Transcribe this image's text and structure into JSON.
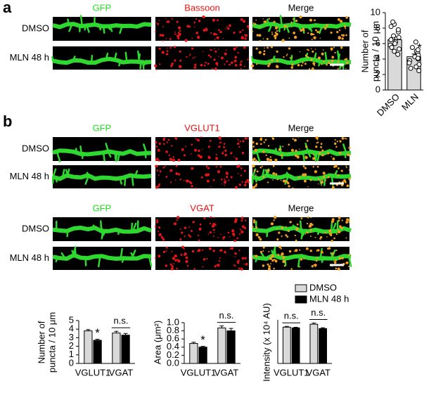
{
  "panel_labels": [
    "a",
    "b"
  ],
  "image_blocks": [
    {
      "columns": [
        "GFP",
        "Bassoon",
        "Merge"
      ],
      "rows": [
        "DMSO",
        "MLN 48 h"
      ]
    },
    {
      "columns": [
        "GFP",
        "VGLUT1",
        "Merge"
      ],
      "rows": [
        "DMSO",
        "MLN 48 h"
      ]
    },
    {
      "columns": [
        "GFP",
        "VGAT",
        "Merge"
      ],
      "rows": [
        "DMSO",
        "MLN 48 h"
      ]
    }
  ],
  "chart_data": [
    {
      "type": "bar",
      "ylabel": [
        "Number of",
        "puncta / 10 μm"
      ],
      "categories": [
        "DMSO",
        "MLN"
      ],
      "values": [
        6.5,
        4.3
      ],
      "errors": [
        0.4,
        0.35
      ],
      "color": "#d9d9d9",
      "points": [
        [
          8.5,
          8.8,
          8.2,
          7.5,
          7.0,
          6.8,
          6.5,
          6.2,
          5.8,
          5.5,
          5.0,
          4.6,
          7.8,
          6.0,
          5.3
        ],
        [
          6.2,
          5.5,
          5.0,
          4.8,
          4.5,
          4.3,
          4.0,
          3.8,
          3.5,
          3.3,
          3.0,
          2.8,
          2.5,
          5.2,
          4.1
        ]
      ],
      "ylim": [
        0,
        10
      ],
      "yticks": [
        0,
        2,
        4,
        6,
        8,
        10
      ],
      "annotations": [
        "*"
      ]
    },
    {
      "type": "grouped-bar",
      "ylabel": [
        "Number of",
        "puncta / 10 μm"
      ],
      "categories": [
        "VGLUT1",
        "VGAT"
      ],
      "series": [
        {
          "name": "DMSO",
          "color": "#d9d9d9",
          "values": [
            3.8,
            3.55
          ],
          "errors": [
            0.15,
            0.2
          ]
        },
        {
          "name": "MLN 48 h",
          "color": "#000000",
          "values": [
            2.7,
            3.3
          ],
          "errors": [
            0.12,
            0.2
          ]
        }
      ],
      "ylim": [
        0,
        5
      ],
      "yticks": [
        0,
        1,
        2,
        3,
        4,
        5
      ],
      "annotations": [
        "*",
        "n.s."
      ]
    },
    {
      "type": "grouped-bar",
      "ylabel": [
        "Area (μm²)"
      ],
      "categories": [
        "VGLUT1",
        "VGAT"
      ],
      "series": [
        {
          "name": "DMSO",
          "color": "#d9d9d9",
          "values": [
            0.49,
            0.87
          ],
          "errors": [
            0.03,
            0.05
          ]
        },
        {
          "name": "MLN 48 h",
          "color": "#000000",
          "values": [
            0.4,
            0.8
          ],
          "errors": [
            0.02,
            0.06
          ]
        }
      ],
      "ylim": [
        {
          "value": 0,
          "label": "0.0"
        },
        {
          "value": 1,
          "label": "1.0"
        }
      ],
      "yticks": [
        {
          "value": 0,
          "label": "0.0"
        },
        0.2,
        0.4,
        0.6,
        0.8,
        {
          "value": 1,
          "label": "1.0"
        }
      ],
      "annotations": [
        "*",
        "n.s."
      ]
    },
    {
      "type": "grouped-bar",
      "ylabel": [
        "Intensity (x 10⁴ AU)"
      ],
      "categories": [
        "VGLUT1",
        "VGAT"
      ],
      "series": [
        {
          "name": "DMSO",
          "color": "#d9d9d9",
          "values": [
            2.5,
            2.7
          ],
          "errors": [
            0.05,
            0.08
          ]
        },
        {
          "name": "MLN 48 h",
          "color": "#000000",
          "values": [
            2.45,
            2.4
          ],
          "errors": [
            0.04,
            0.06
          ]
        }
      ],
      "ylim": [
        0,
        3
      ],
      "annotations": [
        "n.s.",
        "n.s."
      ],
      "legend": "top"
    }
  ]
}
